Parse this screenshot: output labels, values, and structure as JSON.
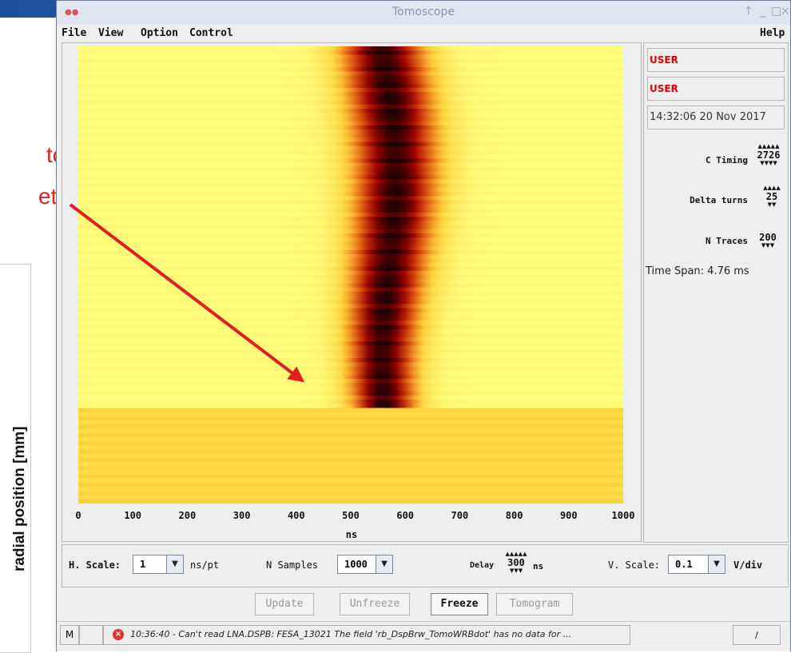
{
  "slide": {
    "text_line1": "to",
    "text_line2": "et",
    "ylabel": "radial position [mm]"
  },
  "window": {
    "title": "Tomoscope",
    "controls": {
      "pin": "↑",
      "minimize": "_",
      "maximize": "□",
      "close": "×"
    }
  },
  "menu": {
    "file": "File",
    "view": "View",
    "option": "Option",
    "control": "Control",
    "help": "Help"
  },
  "plot": {
    "xlabel": "ns",
    "xticks": [
      "0",
      "100",
      "200",
      "300",
      "400",
      "500",
      "600",
      "700",
      "800",
      "900",
      "1000"
    ]
  },
  "chart_data": {
    "type": "heatmap",
    "xlabel": "ns",
    "xlim": [
      0,
      1000
    ],
    "traces": 200,
    "peak_center_ns": 570,
    "colormap": [
      "#ffff80",
      "#ffd23c",
      "#e66414",
      "#a00000",
      "#1e0000"
    ]
  },
  "right_panel": {
    "user1": "USER",
    "user2": "USER",
    "datetime": "14:32:06 20 Nov 2017",
    "c_timing_label": "C Timing",
    "c_timing_value": "2726",
    "delta_turns_label": "Delta turns",
    "delta_turns_value": "25",
    "n_traces_label": "N Traces",
    "n_traces_value": "200",
    "time_span": "Time Span: 4.76 ms"
  },
  "controls": {
    "h_scale_label": "H. Scale:",
    "h_scale_value": "1",
    "h_scale_unit": "ns/pt",
    "n_samples_label": "N Samples",
    "n_samples_value": "1000",
    "delay_label": "Delay",
    "delay_value": "300",
    "delay_unit": "ns",
    "v_scale_label": "V. Scale:",
    "v_scale_value": "0.1",
    "v_scale_unit": "V/div"
  },
  "buttons": {
    "update": "Update",
    "unfreeze": "Unfreeze",
    "freeze": "Freeze",
    "tomogram": "Tomogram"
  },
  "status": {
    "mode": "M",
    "message": "10:36:40 - Can't read LNA.DSPB: FESA_13021  The field 'rb_DspBrw_TomoWRBdot' has no data for ...",
    "corner": "/"
  }
}
